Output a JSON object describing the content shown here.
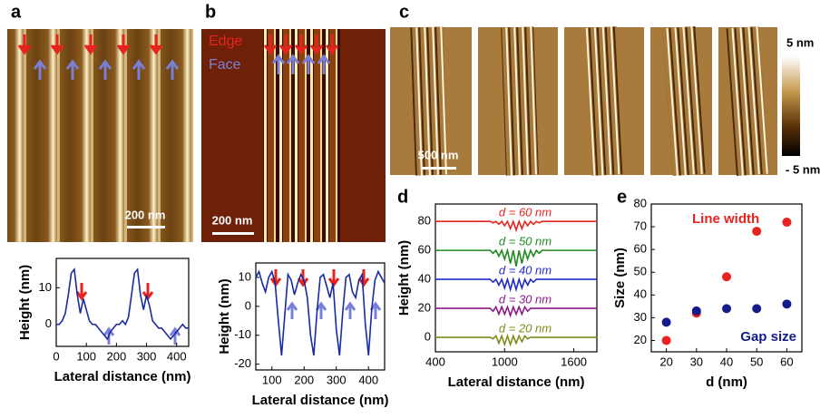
{
  "panels": {
    "a": "a",
    "b": "b",
    "c": "c",
    "d": "d",
    "e": "e"
  },
  "images": {
    "a_scale": "200 nm",
    "b_scale": "200 nm",
    "b_edge": "Edge",
    "b_face": "Face",
    "c_scale": "500 nm",
    "colorbar_max": "5 nm",
    "colorbar_min": "- 5 nm"
  },
  "chart_data": [
    {
      "type": "line",
      "xlabel": "Lateral distance  (nm)",
      "ylabel": "Height (nm)",
      "color": "#1a2aa0",
      "x": [
        0,
        10,
        20,
        30,
        40,
        50,
        60,
        70,
        80,
        90,
        100,
        110,
        120,
        130,
        140,
        150,
        160,
        170,
        180,
        190,
        200,
        210,
        220,
        230,
        240,
        250,
        260,
        270,
        280,
        290,
        300,
        310,
        320,
        330,
        340,
        350,
        360,
        370,
        380,
        390,
        400,
        410,
        420,
        430,
        440
      ],
      "values": [
        0,
        0,
        1,
        3,
        8,
        14,
        15,
        8,
        3,
        7,
        4,
        1,
        0,
        0,
        -1,
        -2,
        -3,
        -4,
        -2,
        -1,
        0,
        0,
        1,
        0,
        2,
        8,
        14,
        15,
        8,
        4,
        8,
        5,
        1,
        0,
        -1,
        -1,
        -2,
        -3,
        -4,
        -3,
        -2,
        -1,
        0,
        -1,
        -1
      ],
      "xlim": [
        0,
        440
      ],
      "ylim": [
        -6,
        18
      ],
      "xticks": [
        0,
        100,
        200,
        300,
        400
      ],
      "yticks": [
        0,
        10
      ]
    },
    {
      "type": "line",
      "xlabel": "Lateral distance  (nm)",
      "ylabel": "Height (nm)",
      "color": "#1a2aa0",
      "x": [
        50,
        60,
        70,
        80,
        90,
        100,
        110,
        120,
        130,
        140,
        150,
        160,
        170,
        180,
        190,
        200,
        210,
        220,
        230,
        240,
        250,
        260,
        270,
        280,
        290,
        300,
        310,
        320,
        330,
        340,
        350,
        360,
        370,
        380,
        390,
        400,
        410,
        420,
        430,
        440,
        450
      ],
      "values": [
        10,
        12,
        8,
        5,
        10,
        12,
        8,
        -5,
        -17,
        -3,
        11,
        9,
        4,
        8,
        11,
        9,
        3,
        -10,
        -17,
        -2,
        10,
        11,
        7,
        3,
        8,
        -8,
        -17,
        -2,
        10,
        11,
        5,
        3,
        9,
        11,
        -6,
        -17,
        -1,
        9,
        12,
        10,
        8
      ],
      "xlim": [
        50,
        450
      ],
      "ylim": [
        -22,
        15
      ],
      "xticks": [
        100,
        200,
        300,
        400
      ],
      "yticks": [
        -20,
        -10,
        0,
        10
      ]
    },
    {
      "type": "line",
      "xlabel": "Lateral distance  (nm)",
      "ylabel": "Height (nm)",
      "x": [
        400,
        800,
        850,
        875,
        900,
        925,
        950,
        975,
        1000,
        1025,
        1050,
        1075,
        1100,
        1125,
        1150,
        1175,
        1200,
        1225,
        1250,
        1275,
        1300,
        1325,
        1350,
        1400,
        1800
      ],
      "series": [
        {
          "name": "d = 60 nm",
          "color": "#e8231e",
          "values": [
            80,
            80,
            80,
            80,
            79,
            80,
            78,
            80,
            77,
            80,
            75,
            80,
            74,
            80,
            75,
            80,
            77,
            80,
            78,
            80,
            79,
            80,
            80,
            80,
            80
          ]
        },
        {
          "name": "d = 50 nm",
          "color": "#1f8a1f",
          "values": [
            60,
            60,
            60,
            60,
            58,
            60,
            56,
            60,
            54,
            60,
            51,
            60,
            49,
            60,
            51,
            60,
            54,
            60,
            56,
            60,
            58,
            60,
            60,
            60,
            60
          ]
        },
        {
          "name": "d = 40 nm",
          "color": "#1f2cc8",
          "values": [
            40,
            40,
            40,
            40,
            38,
            40,
            36,
            40,
            34,
            40,
            33,
            40,
            33,
            40,
            34,
            40,
            36,
            40,
            38,
            40,
            40,
            40,
            40,
            40,
            40
          ]
        },
        {
          "name": "d = 30 nm",
          "color": "#8a1a8a",
          "values": [
            20,
            20,
            20,
            20,
            18,
            21,
            16,
            21,
            16,
            21,
            15,
            21,
            16,
            21,
            16,
            21,
            18,
            20,
            20,
            20,
            20,
            20,
            20,
            20,
            20
          ]
        },
        {
          "name": "d = 20 nm",
          "color": "#808a1a",
          "values": [
            0,
            0,
            0,
            0,
            -1,
            1,
            -4,
            1,
            -5,
            1,
            -5,
            1,
            -4,
            1,
            -3,
            1,
            -1,
            0,
            0,
            0,
            0,
            0,
            0,
            0,
            0
          ]
        }
      ],
      "xlim": [
        400,
        1800
      ],
      "ylim": [
        -10,
        92
      ],
      "xticks": [
        400,
        1000,
        1600
      ],
      "yticks": [
        0,
        20,
        40,
        60,
        80
      ]
    },
    {
      "type": "scatter",
      "xlabel": "d (nm)",
      "ylabel": "Size  (nm)",
      "x": [
        20,
        30,
        40,
        50,
        60
      ],
      "series": [
        {
          "name": "Line width",
          "color": "#e8231e",
          "values": [
            20,
            32,
            48,
            68,
            72
          ]
        },
        {
          "name": "Gap size",
          "color": "#141c8c",
          "values": [
            28,
            33,
            34,
            34,
            36
          ]
        }
      ],
      "xlim": [
        15,
        65
      ],
      "ylim": [
        15,
        80
      ],
      "xticks": [
        20,
        30,
        40,
        50,
        60
      ],
      "yticks": [
        20,
        30,
        40,
        50,
        60,
        70,
        80
      ]
    }
  ]
}
